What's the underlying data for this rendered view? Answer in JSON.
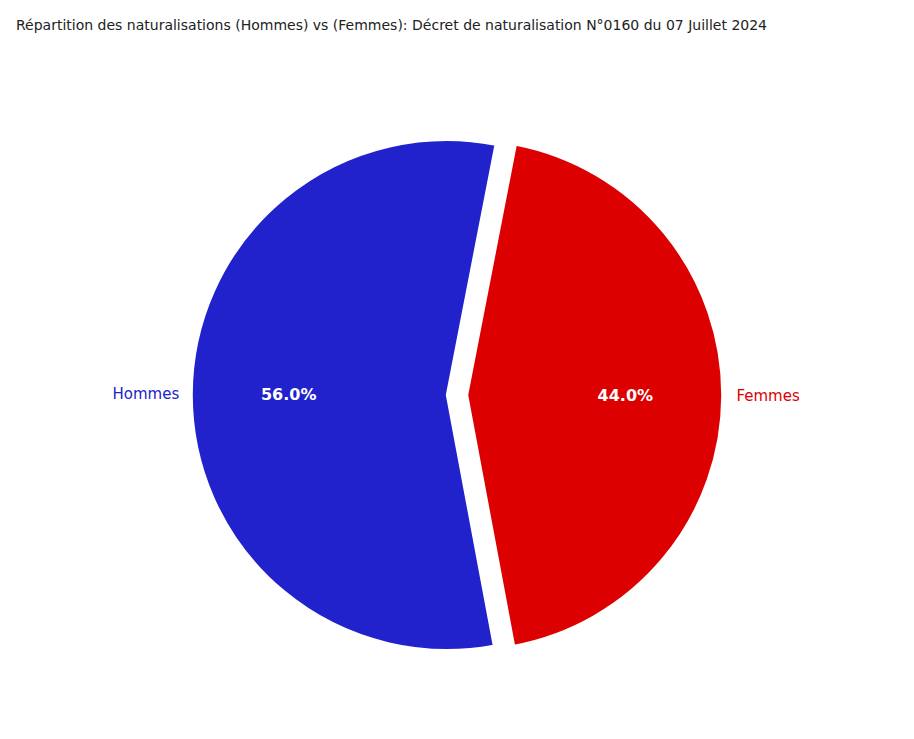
{
  "chart_data": {
    "type": "pie",
    "title": "Répartition des naturalisations (Hommes) vs (Femmes): Décret de naturalisation N°0160 du 07 Juillet 2024",
    "categories": [
      "Hommes",
      "Femmes"
    ],
    "values": [
      56.0,
      44.0
    ],
    "value_labels": [
      "56.0%",
      "44.0%"
    ],
    "colors": [
      "#2222cc",
      "#dd0000"
    ],
    "data_labels": true
  }
}
